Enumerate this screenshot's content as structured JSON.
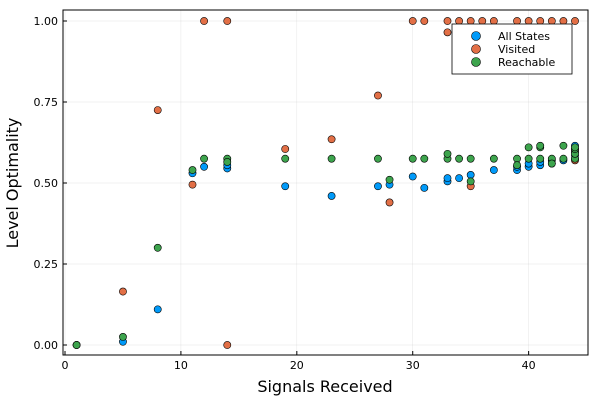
{
  "chart_data": {
    "type": "scatter",
    "title": "",
    "xlabel": "Signals Received",
    "ylabel": "Level Optimality",
    "xlim": [
      0,
      45
    ],
    "ylim": [
      0,
      1
    ],
    "xticks": [
      0,
      10,
      20,
      30,
      40
    ],
    "xtick_labels": [
      "0",
      "10",
      "20",
      "30",
      "40"
    ],
    "yticks": [
      0,
      0.25,
      0.5,
      0.75,
      1
    ],
    "ytick_labels": [
      "0.00",
      "0.25",
      "0.50",
      "0.75",
      "1.00"
    ],
    "grid": true,
    "legend_position": "top-right",
    "series": [
      {
        "name": "All States",
        "color": "#009af9",
        "points": [
          [
            1,
            0
          ],
          [
            5,
            0.01
          ],
          [
            8,
            0.11
          ],
          [
            11,
            0.53
          ],
          [
            12,
            0.55
          ],
          [
            14,
            0.545
          ],
          [
            14,
            0.555
          ],
          [
            19,
            0.49
          ],
          [
            23,
            0.46
          ],
          [
            27,
            0.49
          ],
          [
            28,
            0.495
          ],
          [
            30,
            0.52
          ],
          [
            31,
            0.485
          ],
          [
            33,
            0.505
          ],
          [
            33,
            0.515
          ],
          [
            34,
            0.515
          ],
          [
            35,
            0.525
          ],
          [
            37,
            0.54
          ],
          [
            39,
            0.54
          ],
          [
            39,
            0.55
          ],
          [
            40,
            0.55
          ],
          [
            40,
            0.56
          ],
          [
            41,
            0.555
          ],
          [
            41,
            0.565
          ],
          [
            42,
            0.56
          ],
          [
            42,
            0.57
          ],
          [
            43,
            0.57
          ],
          [
            44,
            0.575
          ],
          [
            44,
            0.585
          ],
          [
            44,
            0.595
          ],
          [
            44,
            0.605
          ],
          [
            44,
            0.615
          ]
        ]
      },
      {
        "name": "Visited",
        "color": "#e26f46",
        "points": [
          [
            1,
            0
          ],
          [
            5,
            0.165
          ],
          [
            8,
            0.725
          ],
          [
            11,
            0.495
          ],
          [
            12,
            1.0
          ],
          [
            14,
            1.0
          ],
          [
            14,
            0
          ],
          [
            19,
            0.605
          ],
          [
            23,
            0.635
          ],
          [
            27,
            0.77
          ],
          [
            28,
            0.44
          ],
          [
            30,
            1.0
          ],
          [
            31,
            1.0
          ],
          [
            33,
            1.0
          ],
          [
            33,
            0.965
          ],
          [
            34,
            1.0
          ],
          [
            35,
            1.0
          ],
          [
            35,
            0.49
          ],
          [
            36,
            1.0
          ],
          [
            37,
            1.0
          ],
          [
            39,
            1.0
          ],
          [
            40,
            1.0
          ],
          [
            40,
            0.965
          ],
          [
            41,
            1.0
          ],
          [
            42,
            1.0
          ],
          [
            43,
            1.0
          ],
          [
            44,
            1.0
          ],
          [
            44,
            0.57
          ],
          [
            44,
            0.6
          ]
        ]
      },
      {
        "name": "Reachable",
        "color": "#3da44d",
        "points": [
          [
            1,
            0
          ],
          [
            5,
            0.025
          ],
          [
            8,
            0.3
          ],
          [
            11,
            0.54
          ],
          [
            12,
            0.575
          ],
          [
            14,
            0.575
          ],
          [
            14,
            0.565
          ],
          [
            19,
            0.575
          ],
          [
            23,
            0.575
          ],
          [
            27,
            0.575
          ],
          [
            28,
            0.51
          ],
          [
            30,
            0.575
          ],
          [
            31,
            0.575
          ],
          [
            33,
            0.575
          ],
          [
            33,
            0.59
          ],
          [
            34,
            0.575
          ],
          [
            35,
            0.575
          ],
          [
            35,
            0.505
          ],
          [
            37,
            0.575
          ],
          [
            39,
            0.575
          ],
          [
            39,
            0.555
          ],
          [
            40,
            0.61
          ],
          [
            40,
            0.575
          ],
          [
            41,
            0.61
          ],
          [
            41,
            0.615
          ],
          [
            41,
            0.575
          ],
          [
            42,
            0.575
          ],
          [
            42,
            0.56
          ],
          [
            43,
            0.575
          ],
          [
            43,
            0.615
          ],
          [
            44,
            0.575
          ],
          [
            44,
            0.59
          ],
          [
            44,
            0.605
          ],
          [
            44,
            0.61
          ]
        ]
      }
    ]
  }
}
